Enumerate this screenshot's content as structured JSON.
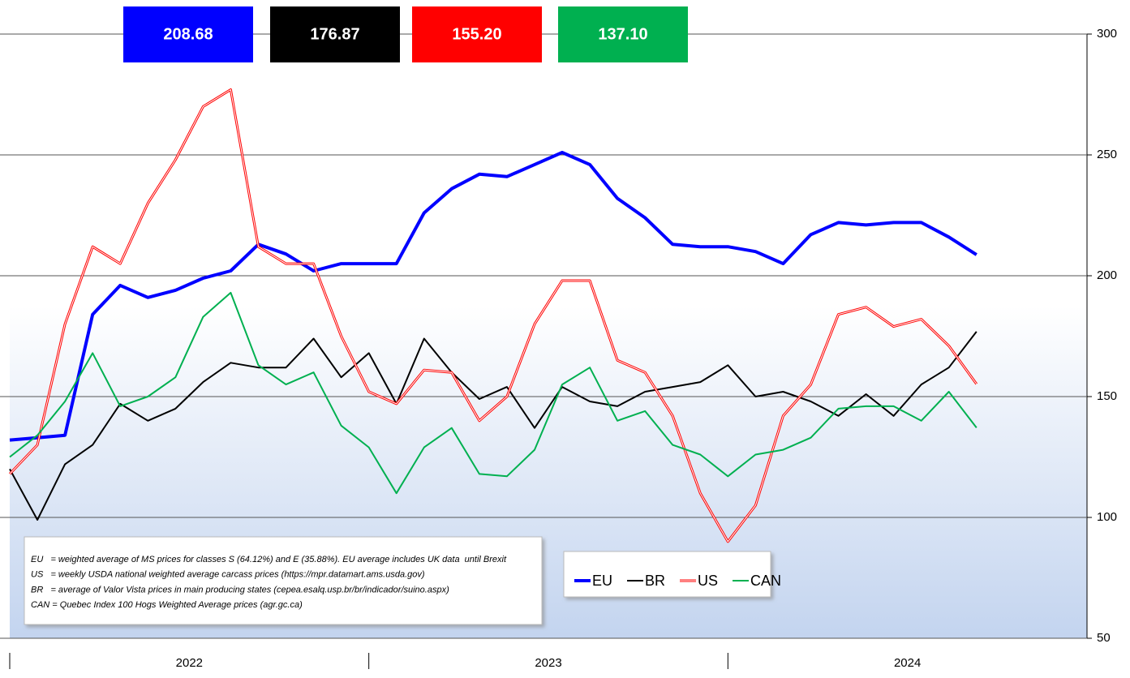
{
  "chart_data": {
    "type": "line",
    "categories": [
      null,
      null,
      null,
      null,
      null,
      null,
      null,
      null,
      null,
      null,
      null,
      null,
      null,
      null,
      null,
      null,
      null,
      null,
      null,
      null,
      null,
      null,
      null,
      null,
      null,
      null,
      null,
      null,
      null,
      null,
      null,
      null,
      null,
      null,
      null,
      null,
      null,
      null,
      null
    ],
    "x_groups": [
      "2022",
      "2023",
      "2024"
    ],
    "ylim": [
      50,
      300
    ],
    "yticks": [
      50,
      100,
      150,
      200,
      250,
      300
    ],
    "grid": true,
    "legend": "bottom-right",
    "series": [
      {
        "name": "EU",
        "color": "#0000ff",
        "width": 4,
        "values": [
          132,
          133,
          134,
          184,
          196,
          191,
          194,
          199,
          202,
          213,
          209,
          202,
          205,
          205,
          205,
          226,
          236,
          242,
          241,
          246,
          251,
          246,
          232,
          224,
          213,
          212,
          212,
          210,
          205,
          217,
          222,
          221,
          222,
          222,
          216,
          208.68,
          null,
          null,
          null
        ],
        "value_labels": [
          null,
          null,
          null,
          null,
          null,
          null,
          null,
          null,
          null,
          null,
          null,
          null,
          null,
          null,
          null,
          null,
          null,
          null,
          null,
          null,
          null,
          null,
          null,
          null,
          null,
          null,
          null,
          null,
          null,
          null,
          null,
          null,
          null,
          null,
          null,
          "208.68",
          null,
          null,
          null
        ]
      },
      {
        "name": "BR",
        "color": "#000000",
        "width": 2,
        "values": [
          120,
          99,
          122,
          130,
          147,
          140,
          145,
          156,
          164,
          162,
          162,
          174,
          158,
          168,
          147,
          174,
          160,
          149,
          154,
          137,
          154,
          148,
          146,
          152,
          154,
          156,
          163,
          150,
          152,
          148,
          142,
          151,
          142,
          155,
          162,
          176.87,
          null,
          null,
          null
        ],
        "value_labels": [
          null,
          null,
          null,
          null,
          null,
          null,
          null,
          null,
          null,
          null,
          null,
          null,
          null,
          null,
          null,
          null,
          null,
          null,
          null,
          null,
          null,
          null,
          null,
          null,
          null,
          null,
          null,
          null,
          null,
          null,
          null,
          null,
          null,
          null,
          null,
          "176.87",
          null,
          null,
          null
        ]
      },
      {
        "name": "US",
        "color": "#ff0000",
        "width": 3,
        "style": "double",
        "values": [
          118,
          130,
          180,
          212,
          205,
          230,
          248,
          270,
          277,
          212,
          205,
          205,
          175,
          152,
          147,
          161,
          160,
          140,
          150,
          180,
          198,
          198,
          165,
          160,
          142,
          110,
          90,
          105,
          142,
          155,
          184,
          187,
          179,
          182,
          171,
          155.2,
          null,
          null,
          null
        ],
        "value_labels": [
          null,
          null,
          null,
          null,
          null,
          null,
          null,
          null,
          null,
          null,
          null,
          null,
          null,
          null,
          null,
          null,
          null,
          null,
          null,
          null,
          null,
          null,
          null,
          null,
          null,
          null,
          null,
          null,
          null,
          null,
          null,
          null,
          null,
          null,
          null,
          "155.20",
          null,
          null,
          null
        ]
      },
      {
        "name": "CAN",
        "color": "#00b050",
        "width": 2,
        "values": [
          125,
          134,
          148,
          168,
          146,
          150,
          158,
          183,
          193,
          163,
          155,
          160,
          138,
          129,
          110,
          129,
          137,
          118,
          117,
          128,
          155,
          162,
          140,
          144,
          130,
          126,
          117,
          126,
          128,
          133,
          145,
          146,
          146,
          140,
          152,
          137.1,
          null,
          null,
          null
        ],
        "value_labels": [
          null,
          null,
          null,
          null,
          null,
          null,
          null,
          null,
          null,
          null,
          null,
          null,
          null,
          null,
          null,
          null,
          null,
          null,
          null,
          null,
          null,
          null,
          null,
          null,
          null,
          null,
          null,
          null,
          null,
          null,
          null,
          null,
          null,
          null,
          null,
          "137.10",
          null,
          null,
          null
        ]
      }
    ],
    "notes": [
      "EU   = weighted average of MS prices for classes S (64.12%) and E (35.88%). EU average includes UK data  until Brexit",
      "US   = weekly USDA national weighted average carcass prices (https://mpr.datamart.ams.usda.gov)",
      "BR   = average of Valor Vista prices in main producing states (cepea.esalq.usp.br/br/indicador/suino.aspx)",
      "CAN = Quebec Index 100 Hogs Weighted Average prices (agr.gc.ca)"
    ]
  }
}
